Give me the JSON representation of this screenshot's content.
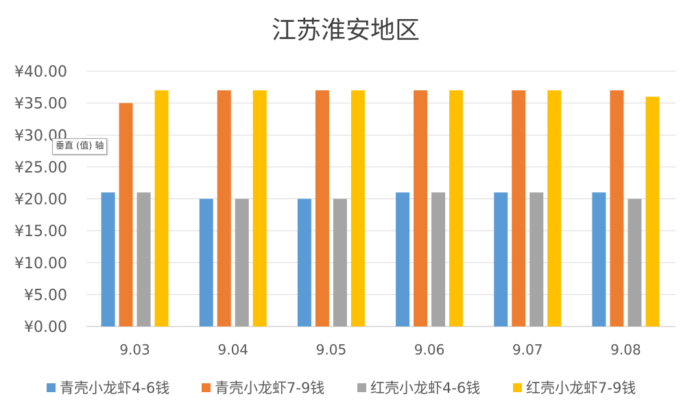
{
  "chart_data": {
    "type": "bar",
    "title": "江苏淮安地区",
    "categories": [
      "9.03",
      "9.04",
      "9.05",
      "9.06",
      "9.07",
      "9.08"
    ],
    "series": [
      {
        "name": "青壳小龙虾4-6钱",
        "color": "#5B9BD5",
        "values": [
          21,
          20,
          20,
          21,
          21,
          21
        ]
      },
      {
        "name": "青壳小龙虾7-9钱",
        "color": "#ED7D31",
        "values": [
          35,
          37,
          37,
          37,
          37,
          37
        ]
      },
      {
        "name": "红壳小龙虾4-6钱",
        "color": "#A5A5A5",
        "values": [
          21,
          20,
          20,
          21,
          21,
          20
        ]
      },
      {
        "name": "红壳小龙虾7-9钱",
        "color": "#FFC000",
        "values": [
          37,
          37,
          37,
          37,
          37,
          36
        ]
      }
    ],
    "yticks": [
      "¥0.00",
      "¥5.00",
      "¥10.00",
      "¥15.00",
      "¥20.00",
      "¥25.00",
      "¥30.00",
      "¥35.00",
      "¥40.00"
    ],
    "ylim": [
      0,
      40
    ],
    "grid": true,
    "legend_position": "bottom"
  },
  "tooltip": {
    "text": "垂直 (值) 轴"
  }
}
